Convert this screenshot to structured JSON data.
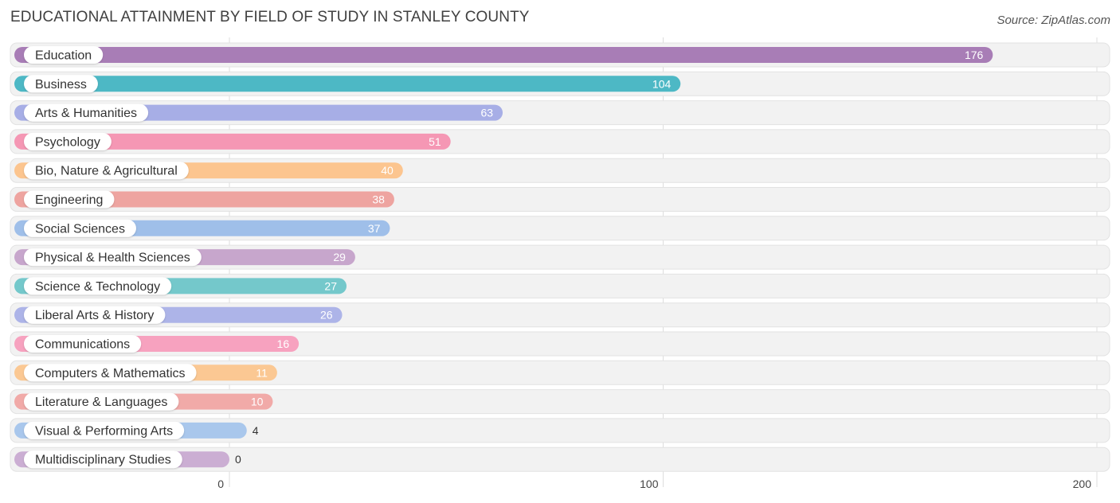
{
  "header": {
    "title": "EDUCATIONAL ATTAINMENT BY FIELD OF STUDY IN STANLEY COUNTY",
    "source": "Source: ZipAtlas.com"
  },
  "chart_data": {
    "type": "bar",
    "orientation": "horizontal",
    "title": "EDUCATIONAL ATTAINMENT BY FIELD OF STUDY IN STANLEY COUNTY",
    "xlabel": "",
    "ylabel": "",
    "xlim": [
      0,
      200
    ],
    "ticks": [
      0,
      100,
      200
    ],
    "tick_labels": [
      "0",
      "100",
      "200"
    ],
    "grid": true,
    "categories": [
      "Education",
      "Business",
      "Arts & Humanities",
      "Psychology",
      "Bio, Nature & Agricultural",
      "Engineering",
      "Social Sciences",
      "Physical & Health Sciences",
      "Science & Technology",
      "Liberal Arts & History",
      "Communications",
      "Computers & Mathematics",
      "Literature & Languages",
      "Visual & Performing Arts",
      "Multidisciplinary Studies"
    ],
    "values": [
      176,
      104,
      63,
      51,
      40,
      38,
      37,
      29,
      27,
      26,
      16,
      11,
      10,
      4,
      0
    ],
    "value_labels": [
      "176",
      "104",
      "63",
      "51",
      "40",
      "38",
      "37",
      "29",
      "27",
      "26",
      "16",
      "11",
      "10",
      "4",
      "0"
    ],
    "colors": [
      "#a87db6",
      "#4db8c5",
      "#a7aee6",
      "#f597b4",
      "#fcc58f",
      "#eea4a0",
      "#9fbfe9",
      "#c7a6cc",
      "#74c8cb",
      "#adb4e8",
      "#f7a2bf",
      "#fbc893",
      "#f1aaa8",
      "#a9c7ec",
      "#cbaed3"
    ]
  }
}
